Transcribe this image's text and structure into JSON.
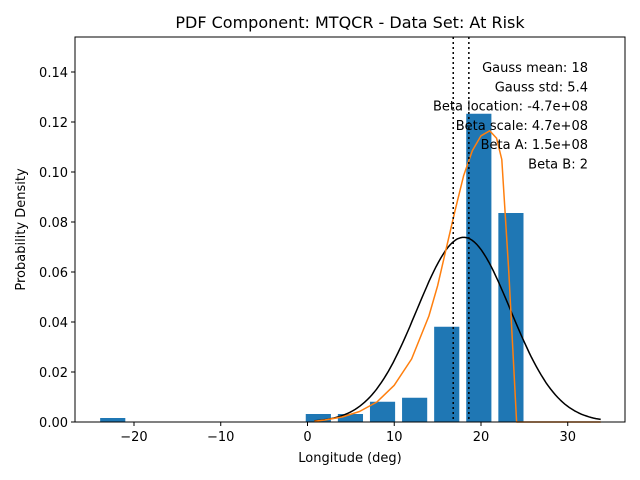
{
  "chart_data": {
    "type": "bar",
    "title": "PDF Component: MTQCR - Data Set: At Risk",
    "xlabel": "Longitude (deg)",
    "ylabel": "Probability Density",
    "xlim": [
      -26.8,
      36.6
    ],
    "ylim": [
      0,
      0.154
    ],
    "grid": false,
    "x_ticks": [
      -20,
      -10,
      0,
      10,
      20,
      30
    ],
    "x_tick_labels": [
      "−20",
      "−10",
      "0",
      "10",
      "20",
      "30"
    ],
    "y_ticks": [
      0.0,
      0.02,
      0.04,
      0.06,
      0.08,
      0.1,
      0.12,
      0.14
    ],
    "y_tick_labels": [
      "0.00",
      "0.02",
      "0.04",
      "0.06",
      "0.08",
      "0.10",
      "0.12",
      "0.14"
    ],
    "bar_color": "#1f77b4",
    "bins": [
      {
        "left": -23.9,
        "right": -21.0,
        "value": 0.0016
      },
      {
        "left": -0.2,
        "right": 2.7,
        "value": 0.0032
      },
      {
        "left": 3.5,
        "right": 6.4,
        "value": 0.0032
      },
      {
        "left": 7.2,
        "right": 10.1,
        "value": 0.0081
      },
      {
        "left": 10.9,
        "right": 13.8,
        "value": 0.0097
      },
      {
        "left": 14.6,
        "right": 17.5,
        "value": 0.0381
      },
      {
        "left": 18.3,
        "right": 21.2,
        "value": 0.1233
      },
      {
        "left": 22.0,
        "right": 24.9,
        "value": 0.0836
      }
    ],
    "series": [
      {
        "kind": "gauss",
        "color": "#000000",
        "mean": 18,
        "std": 5.4,
        "x_range": [
          0.8,
          33.8
        ]
      },
      {
        "kind": "beta",
        "color": "#ff7f0e",
        "x": [
          0.8,
          2,
          4,
          6,
          8,
          10,
          12,
          14,
          15,
          16,
          17,
          18,
          19,
          20,
          21,
          21.8,
          22.4,
          23.2,
          24.1,
          26,
          30,
          33.8
        ],
        "y": [
          0.0003,
          0.0008,
          0.002,
          0.0042,
          0.008,
          0.0147,
          0.0252,
          0.0424,
          0.0545,
          0.0695,
          0.0845,
          0.0985,
          0.1085,
          0.1145,
          0.1165,
          0.1135,
          0.105,
          0.06,
          0,
          0,
          0,
          0
        ]
      }
    ],
    "vlines": [
      16.8,
      18.6
    ],
    "annotations": [
      "Gauss mean: 18",
      "Gauss std: 5.4",
      "Beta location: -4.7e+08",
      "Beta scale: 4.7e+08",
      "Beta A: 1.5e+08",
      "Beta B: 2"
    ]
  }
}
